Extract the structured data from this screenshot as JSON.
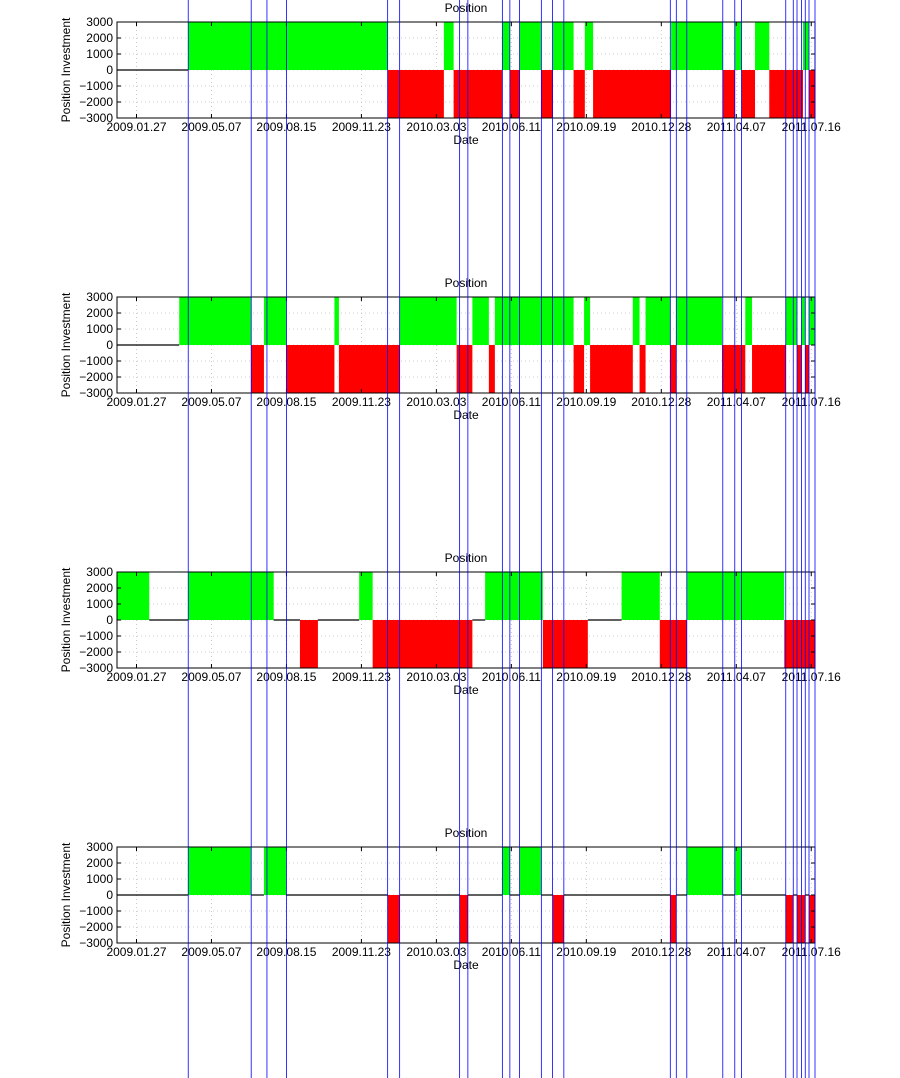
{
  "chart_data": [
    {
      "type": "area",
      "title": "Position",
      "xlabel": "Date",
      "ylabel": "Position Investment",
      "ylim": [
        -3000,
        3000
      ],
      "yticks": [
        3000,
        2000,
        1000,
        0,
        -1000,
        -2000,
        -3000
      ],
      "xlim": [
        "2009-01-01",
        "2011-07-21"
      ],
      "xticks": [
        {
          "date": "2009-01-27",
          "label": "2009.01.27"
        },
        {
          "date": "2009-05-07",
          "label": "2009.05.07"
        },
        {
          "date": "2009-08-15",
          "label": "2009.08.15"
        },
        {
          "date": "2009-11-23",
          "label": "2009.11.23"
        },
        {
          "date": "2010-03-03",
          "label": "2010.03.03"
        },
        {
          "date": "2010-06-11",
          "label": "2010.06.11"
        },
        {
          "date": "2010-09-19",
          "label": "2010.09.19"
        },
        {
          "date": "2010-12-28",
          "label": "2010.12.28"
        },
        {
          "date": "2011-04-07",
          "label": "2011.04.07"
        },
        {
          "date": "2011-07-16",
          "label": "2011.07.16"
        }
      ],
      "grid": true,
      "positions": [
        {
          "start": "2009-01-01",
          "end": "2009-04-06",
          "value": 0
        },
        {
          "start": "2009-04-06",
          "end": "2009-12-28",
          "value": 3000
        },
        {
          "start": "2009-12-28",
          "end": "2010-03-13",
          "value": -3000
        },
        {
          "start": "2010-03-13",
          "end": "2010-03-26",
          "value": 3000
        },
        {
          "start": "2010-03-26",
          "end": "2010-05-30",
          "value": -3000
        },
        {
          "start": "2010-05-30",
          "end": "2010-06-09",
          "value": 3000
        },
        {
          "start": "2010-06-09",
          "end": "2010-06-22",
          "value": -3000
        },
        {
          "start": "2010-06-22",
          "end": "2010-07-21",
          "value": 3000
        },
        {
          "start": "2010-07-21",
          "end": "2010-08-05",
          "value": -3000
        },
        {
          "start": "2010-08-05",
          "end": "2010-09-02",
          "value": 3000
        },
        {
          "start": "2010-09-02",
          "end": "2010-09-17",
          "value": -3000
        },
        {
          "start": "2010-09-17",
          "end": "2010-09-28",
          "value": 3000
        },
        {
          "start": "2010-09-28",
          "end": "2011-01-10",
          "value": -3000
        },
        {
          "start": "2011-01-10",
          "end": "2011-03-20",
          "value": 3000
        },
        {
          "start": "2011-03-20",
          "end": "2011-04-05",
          "value": -3000
        },
        {
          "start": "2011-04-05",
          "end": "2011-04-14",
          "value": 3000
        },
        {
          "start": "2011-04-14",
          "end": "2011-05-02",
          "value": -3000
        },
        {
          "start": "2011-05-02",
          "end": "2011-05-21",
          "value": 3000
        },
        {
          "start": "2011-05-21",
          "end": "2011-07-05",
          "value": -3000
        },
        {
          "start": "2011-07-05",
          "end": "2011-07-13",
          "value": 3000
        },
        {
          "start": "2011-07-13",
          "end": "2011-07-21",
          "value": -3000
        }
      ]
    },
    {
      "type": "area",
      "title": "Position",
      "xlabel": "Date",
      "ylabel": "Position Investment",
      "ylim": [
        -3000,
        3000
      ],
      "yticks": [
        3000,
        2000,
        1000,
        0,
        -1000,
        -2000,
        -3000
      ],
      "xlim": [
        "2009-01-01",
        "2011-07-21"
      ],
      "xticks": [
        {
          "date": "2009-01-27",
          "label": "2009.01.27"
        },
        {
          "date": "2009-05-07",
          "label": "2009.05.07"
        },
        {
          "date": "2009-08-15",
          "label": "2009.08.15"
        },
        {
          "date": "2009-11-23",
          "label": "2009.11.23"
        },
        {
          "date": "2010-03-03",
          "label": "2010.03.03"
        },
        {
          "date": "2010-06-11",
          "label": "2010.06.11"
        },
        {
          "date": "2010-09-19",
          "label": "2010.09.19"
        },
        {
          "date": "2010-12-28",
          "label": "2010.12.28"
        },
        {
          "date": "2011-04-07",
          "label": "2011.04.07"
        },
        {
          "date": "2011-07-16",
          "label": "2011.07.16"
        }
      ],
      "grid": true,
      "positions": [
        {
          "start": "2009-01-01",
          "end": "2009-03-25",
          "value": 0
        },
        {
          "start": "2009-03-25",
          "end": "2009-06-29",
          "value": 3000
        },
        {
          "start": "2009-06-29",
          "end": "2009-07-16",
          "value": -3000
        },
        {
          "start": "2009-07-16",
          "end": "2009-08-15",
          "value": 3000
        },
        {
          "start": "2009-08-15",
          "end": "2009-10-18",
          "value": -3000
        },
        {
          "start": "2009-10-18",
          "end": "2009-10-24",
          "value": 3000
        },
        {
          "start": "2009-10-24",
          "end": "2010-01-13",
          "value": -3000
        },
        {
          "start": "2010-01-13",
          "end": "2010-03-30",
          "value": 3000
        },
        {
          "start": "2010-03-30",
          "end": "2010-04-20",
          "value": -3000
        },
        {
          "start": "2010-04-20",
          "end": "2010-05-12",
          "value": 3000
        },
        {
          "start": "2010-05-12",
          "end": "2010-05-20",
          "value": -3000
        },
        {
          "start": "2010-05-20",
          "end": "2010-09-02",
          "value": 3000
        },
        {
          "start": "2010-09-02",
          "end": "2010-09-16",
          "value": -3000
        },
        {
          "start": "2010-09-16",
          "end": "2010-09-24",
          "value": 3000
        },
        {
          "start": "2010-09-24",
          "end": "2010-11-20",
          "value": -3000
        },
        {
          "start": "2010-11-20",
          "end": "2010-11-29",
          "value": 3000
        },
        {
          "start": "2010-11-29",
          "end": "2010-12-07",
          "value": -3000
        },
        {
          "start": "2010-12-07",
          "end": "2011-01-09",
          "value": 3000
        },
        {
          "start": "2011-01-09",
          "end": "2011-01-17",
          "value": -3000
        },
        {
          "start": "2011-01-17",
          "end": "2011-03-19",
          "value": 3000
        },
        {
          "start": "2011-03-19",
          "end": "2011-04-19",
          "value": -3000
        },
        {
          "start": "2011-04-19",
          "end": "2011-04-28",
          "value": 3000
        },
        {
          "start": "2011-04-28",
          "end": "2011-06-12",
          "value": -3000
        },
        {
          "start": "2011-06-12",
          "end": "2011-06-27",
          "value": 3000
        },
        {
          "start": "2011-06-27",
          "end": "2011-07-03",
          "value": -3000
        },
        {
          "start": "2011-07-03",
          "end": "2011-07-08",
          "value": 3000
        },
        {
          "start": "2011-07-08",
          "end": "2011-07-13",
          "value": -3000
        },
        {
          "start": "2011-07-13",
          "end": "2011-07-21",
          "value": 3000
        }
      ]
    },
    {
      "type": "area",
      "title": "Position",
      "xlabel": "Date",
      "ylabel": "Position Investment",
      "ylim": [
        -3000,
        3000
      ],
      "yticks": [
        3000,
        2000,
        1000,
        0,
        -1000,
        -2000,
        -3000
      ],
      "xlim": [
        "2009-01-01",
        "2011-07-21"
      ],
      "xticks": [
        {
          "date": "2009-01-27",
          "label": "2009.01.27"
        },
        {
          "date": "2009-05-07",
          "label": "2009.05.07"
        },
        {
          "date": "2009-08-15",
          "label": "2009.08.15"
        },
        {
          "date": "2009-11-23",
          "label": "2009.11.23"
        },
        {
          "date": "2010-03-03",
          "label": "2010.03.03"
        },
        {
          "date": "2010-06-11",
          "label": "2010.06.11"
        },
        {
          "date": "2010-09-19",
          "label": "2010.09.19"
        },
        {
          "date": "2010-12-28",
          "label": "2010.12.28"
        },
        {
          "date": "2011-04-07",
          "label": "2011.04.07"
        },
        {
          "date": "2011-07-16",
          "label": "2011.07.16"
        }
      ],
      "grid": true,
      "positions": [
        {
          "start": "2009-01-01",
          "end": "2009-02-13",
          "value": 3000
        },
        {
          "start": "2009-02-13",
          "end": "2009-04-06",
          "value": 0
        },
        {
          "start": "2009-04-06",
          "end": "2009-07-29",
          "value": 3000
        },
        {
          "start": "2009-07-29",
          "end": "2009-09-02",
          "value": 0
        },
        {
          "start": "2009-09-02",
          "end": "2009-09-26",
          "value": -3000
        },
        {
          "start": "2009-09-26",
          "end": "2009-11-20",
          "value": 0
        },
        {
          "start": "2009-11-20",
          "end": "2009-12-08",
          "value": 3000
        },
        {
          "start": "2009-12-08",
          "end": "2010-04-20",
          "value": -3000
        },
        {
          "start": "2010-04-20",
          "end": "2010-05-07",
          "value": 0
        },
        {
          "start": "2010-05-07",
          "end": "2010-07-23",
          "value": 3000
        },
        {
          "start": "2010-07-23",
          "end": "2010-09-21",
          "value": -3000
        },
        {
          "start": "2010-09-21",
          "end": "2010-11-05",
          "value": 0
        },
        {
          "start": "2010-11-05",
          "end": "2010-12-26",
          "value": 3000
        },
        {
          "start": "2010-12-26",
          "end": "2011-01-31",
          "value": -3000
        },
        {
          "start": "2011-01-31",
          "end": "2011-06-10",
          "value": 3000
        },
        {
          "start": "2011-06-10",
          "end": "2011-07-21",
          "value": -3000
        }
      ]
    },
    {
      "type": "area",
      "title": "Position",
      "xlabel": "Date",
      "ylabel": "Position Investment",
      "ylim": [
        -3000,
        3000
      ],
      "yticks": [
        3000,
        2000,
        1000,
        0,
        -1000,
        -2000,
        -3000
      ],
      "xlim": [
        "2009-01-01",
        "2011-07-21"
      ],
      "xticks": [
        {
          "date": "2009-01-27",
          "label": "2009.01.27"
        },
        {
          "date": "2009-05-07",
          "label": "2009.05.07"
        },
        {
          "date": "2009-08-15",
          "label": "2009.08.15"
        },
        {
          "date": "2009-11-23",
          "label": "2009.11.23"
        },
        {
          "date": "2010-03-03",
          "label": "2010.03.03"
        },
        {
          "date": "2010-06-11",
          "label": "2010.06.11"
        },
        {
          "date": "2010-09-19",
          "label": "2010.09.19"
        },
        {
          "date": "2010-12-28",
          "label": "2010.12.28"
        },
        {
          "date": "2011-04-07",
          "label": "2011.04.07"
        },
        {
          "date": "2011-07-16",
          "label": "2011.07.16"
        }
      ],
      "grid": true,
      "positions": [
        {
          "start": "2009-01-01",
          "end": "2009-04-06",
          "value": 0
        },
        {
          "start": "2009-04-06",
          "end": "2009-06-29",
          "value": 3000
        },
        {
          "start": "2009-06-29",
          "end": "2009-07-16",
          "value": 0
        },
        {
          "start": "2009-07-16",
          "end": "2009-08-15",
          "value": 3000
        },
        {
          "start": "2009-08-15",
          "end": "2009-12-28",
          "value": 0
        },
        {
          "start": "2009-12-28",
          "end": "2010-01-13",
          "value": -3000
        },
        {
          "start": "2010-01-13",
          "end": "2010-04-03",
          "value": 0
        },
        {
          "start": "2010-04-03",
          "end": "2010-04-14",
          "value": -3000
        },
        {
          "start": "2010-04-14",
          "end": "2010-05-30",
          "value": 0
        },
        {
          "start": "2010-05-30",
          "end": "2010-06-09",
          "value": 3000
        },
        {
          "start": "2010-06-09",
          "end": "2010-06-22",
          "value": 0
        },
        {
          "start": "2010-06-22",
          "end": "2010-07-21",
          "value": 3000
        },
        {
          "start": "2010-07-21",
          "end": "2010-08-05",
          "value": 0
        },
        {
          "start": "2010-08-05",
          "end": "2010-08-20",
          "value": -3000
        },
        {
          "start": "2010-08-20",
          "end": "2011-01-09",
          "value": 0
        },
        {
          "start": "2011-01-09",
          "end": "2011-01-17",
          "value": -3000
        },
        {
          "start": "2011-01-17",
          "end": "2011-01-31",
          "value": 0
        },
        {
          "start": "2011-01-31",
          "end": "2011-03-20",
          "value": 3000
        },
        {
          "start": "2011-03-20",
          "end": "2011-04-05",
          "value": 0
        },
        {
          "start": "2011-04-05",
          "end": "2011-04-14",
          "value": 3000
        },
        {
          "start": "2011-04-14",
          "end": "2011-06-12",
          "value": 0
        },
        {
          "start": "2011-06-12",
          "end": "2011-06-22",
          "value": -3000
        },
        {
          "start": "2011-06-22",
          "end": "2011-06-27",
          "value": 0
        },
        {
          "start": "2011-06-27",
          "end": "2011-07-08",
          "value": -3000
        },
        {
          "start": "2011-07-08",
          "end": "2011-07-13",
          "value": 0
        },
        {
          "start": "2011-07-13",
          "end": "2011-07-21",
          "value": -3000
        }
      ]
    }
  ],
  "markers": [
    "2009-04-06",
    "2009-06-29",
    "2009-07-20",
    "2009-08-15",
    "2009-12-28",
    "2010-01-13",
    "2010-04-03",
    "2010-04-14",
    "2010-05-30",
    "2010-06-09",
    "2010-06-22",
    "2010-07-21",
    "2010-08-05",
    "2010-08-20",
    "2011-01-09",
    "2011-01-17",
    "2011-01-31",
    "2011-03-20",
    "2011-04-05",
    "2011-04-14",
    "2011-06-12",
    "2011-06-22",
    "2011-06-27",
    "2011-07-03",
    "2011-07-08",
    "2011-07-13",
    "2011-07-21"
  ],
  "colors": {
    "long": "#00ff00",
    "short": "#ff0000",
    "flat_line": "#000000",
    "marker": "#0000ff",
    "grid": "#c0c0c0",
    "axis": "#000000"
  }
}
